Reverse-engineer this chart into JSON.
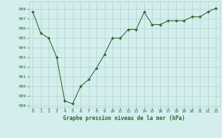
{
  "x": [
    0,
    1,
    2,
    3,
    4,
    5,
    6,
    7,
    8,
    9,
    10,
    11,
    12,
    13,
    14,
    15,
    16,
    17,
    18,
    19,
    20,
    21,
    22,
    23
  ],
  "y": [
    997.7,
    995.5,
    995.0,
    993.0,
    988.5,
    988.2,
    990.0,
    990.7,
    991.9,
    993.3,
    995.0,
    995.0,
    995.9,
    995.9,
    997.7,
    996.4,
    996.4,
    996.8,
    996.8,
    996.8,
    997.2,
    997.2,
    997.7,
    998.1
  ],
  "line_color": "#2d6a2d",
  "marker": "D",
  "marker_size": 2.0,
  "bg_color": "#d4eeee",
  "grid_color": "#b0d0cc",
  "xlabel": "Graphe pression niveau de la mer (hPa)",
  "xlabel_color": "#2d6a2d",
  "tick_color": "#2d6a2d",
  "ylim": [
    987.8,
    998.8
  ],
  "yticks": [
    988,
    989,
    990,
    991,
    992,
    993,
    994,
    995,
    996,
    997,
    998
  ],
  "xticks": [
    0,
    1,
    2,
    3,
    4,
    5,
    6,
    7,
    8,
    9,
    10,
    11,
    12,
    13,
    14,
    15,
    16,
    17,
    18,
    19,
    20,
    21,
    22,
    23
  ],
  "figsize": [
    3.2,
    2.0
  ],
  "dpi": 100
}
